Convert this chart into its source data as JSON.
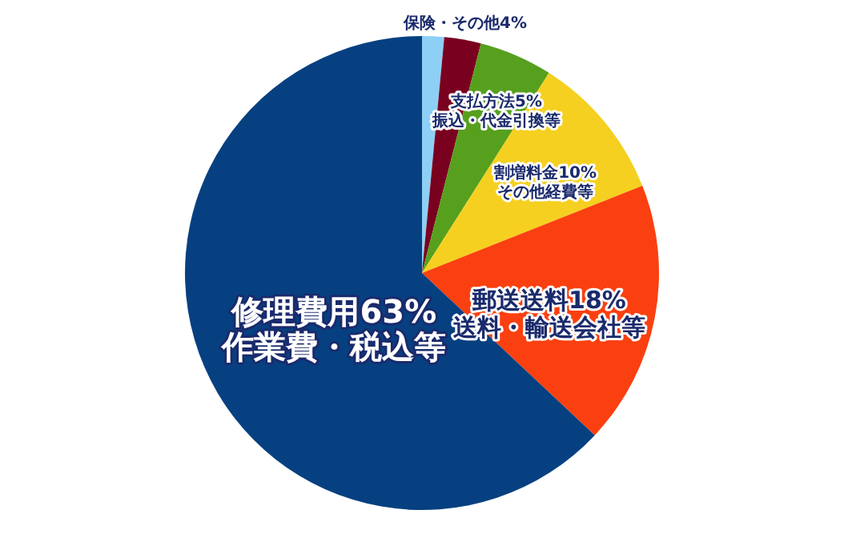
{
  "chart_data": {
    "type": "pie",
    "categories": [
      null,
      "保険・その他4%",
      "支払方法5%\n振込・代金引換等",
      "割増料金10%\nその他経費等",
      "郵送送料18%\n送料・輸送会社等",
      "修理費用63%\n作業費・税込等"
    ],
    "values": [
      1.5,
      2.5,
      5,
      10,
      18,
      63
    ],
    "colors": [
      "#8ecff5",
      "#7a0020",
      "#56a01e",
      "#f5d020",
      "#fa4010",
      "#064080"
    ]
  }
}
